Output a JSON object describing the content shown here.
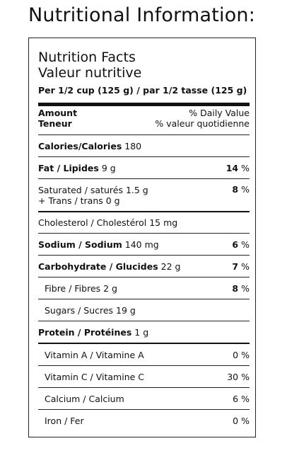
{
  "page_title": "Nutritional Information:",
  "label": {
    "title_en": "Nutrition Facts",
    "title_fr": "Valeur nutritive",
    "serving": "Per 1/2 cup (125 g) / par 1/2 tasse (125 g)",
    "amount_en": "Amount",
    "amount_fr": "Teneur",
    "dv_en": "% Daily Value",
    "dv_fr": "% valeur quotidienne",
    "calories_label": "Calories/Calories",
    "calories_value": "180",
    "fat_label": "Fat / Lipides",
    "fat_value": "9 g",
    "fat_pct": "14",
    "sat_label": "Saturated / saturés 1.5 g",
    "trans_label": "+ Trans / trans 0 g",
    "sat_pct": "8",
    "chol_label": "Cholesterol / Cholestérol 15 mg",
    "sodium_label": "Sodium / Sodium",
    "sodium_value": "140 mg",
    "sodium_pct": "6",
    "carb_label": "Carbohydrate / Glucides",
    "carb_value": "22 g",
    "carb_pct": "7",
    "fibre_label": "Fibre / Fibres 2 g",
    "fibre_pct": "8",
    "sugars_label": "Sugars / Sucres 19 g",
    "protein_label": "Protein / Protéines",
    "protein_value": "1 g",
    "vita_label": "Vitamin A / Vitamine A",
    "vita_pct": "0",
    "vitc_label": "Vitamin C / Vitamine C",
    "vitc_pct": "30",
    "calcium_label": "Calcium / Calcium",
    "calcium_pct": "6",
    "iron_label": "Iron / Fer",
    "iron_pct": "0",
    "pct_sign": "%"
  }
}
